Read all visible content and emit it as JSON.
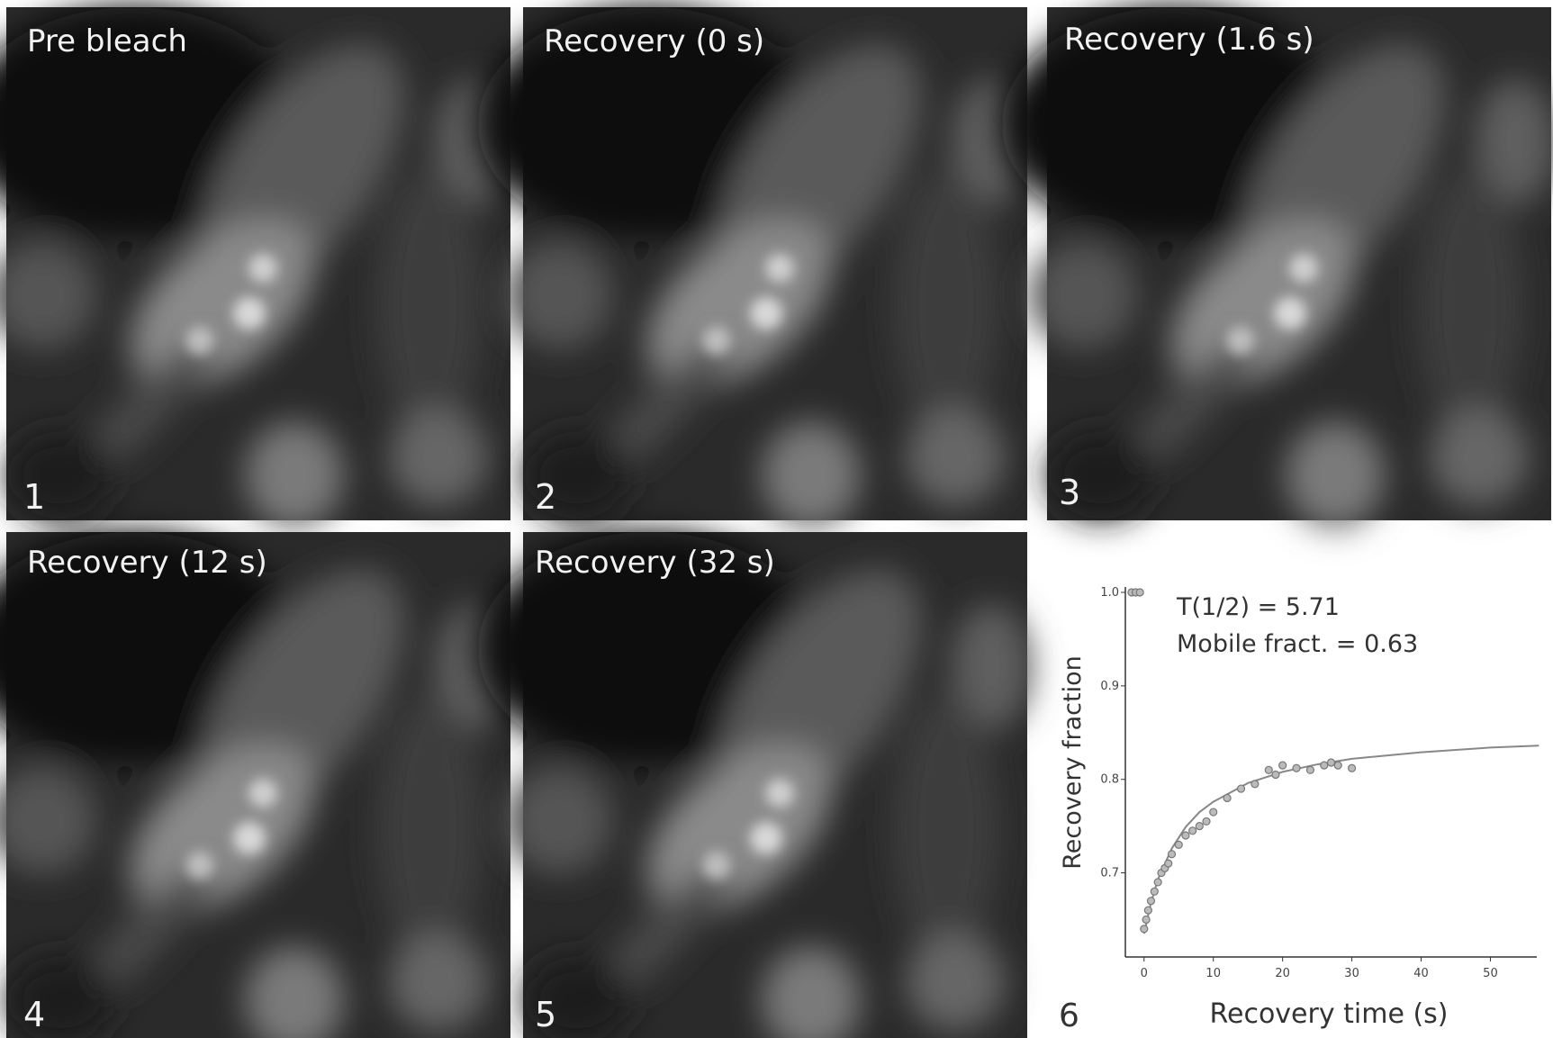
{
  "panels": [
    {
      "label": "Pre bleach",
      "number": "1"
    },
    {
      "label": "Recovery (0 s)",
      "number": "2"
    },
    {
      "label": "Recovery (1.6 s)",
      "number": "3"
    },
    {
      "label": "Recovery (12 s)",
      "number": "4"
    },
    {
      "label": "Recovery (32 s)",
      "number": "5"
    }
  ],
  "chart_data": {
    "type": "scatter",
    "number": "6",
    "x_label": "Recovery time (s)",
    "y_label": "Recovery fraction",
    "annotations": [
      "T(1/2) = 5.71",
      "Mobile fract. = 0.63"
    ],
    "xlim": [
      -2.7,
      56.7
    ],
    "ylim": [
      0.61,
      1.0
    ],
    "xticks": [
      0,
      10,
      20,
      30,
      40,
      50
    ],
    "yticks": [
      0.7,
      0.8,
      0.9,
      {
        "value": 1,
        "label": "1.0"
      }
    ],
    "color": "#777777",
    "x": [
      -1.8,
      -1.2,
      -0.6,
      0,
      0.3,
      0.6,
      1,
      1.5,
      2,
      2.5,
      3,
      3.5,
      4,
      5,
      6,
      7,
      8,
      9,
      10,
      12,
      14,
      16,
      18,
      19,
      20,
      22,
      24,
      26,
      27,
      28,
      30
    ],
    "values": [
      1.0,
      1.0,
      1.0,
      0.64,
      0.65,
      0.66,
      0.67,
      0.68,
      0.69,
      0.7,
      0.705,
      0.71,
      0.72,
      0.73,
      0.74,
      0.745,
      0.75,
      0.755,
      0.765,
      0.78,
      0.79,
      0.795,
      0.81,
      0.805,
      0.815,
      0.812,
      0.81,
      0.815,
      0.818,
      0.815,
      0.812
    ],
    "fit": {
      "color": "#888888",
      "x": [
        0,
        1,
        2,
        4,
        6,
        8,
        10,
        15,
        20,
        25,
        30,
        40,
        50,
        57
      ],
      "values": [
        0.635,
        0.668,
        0.693,
        0.726,
        0.749,
        0.765,
        0.776,
        0.796,
        0.808,
        0.816,
        0.822,
        0.829,
        0.834,
        0.836
      ]
    }
  }
}
